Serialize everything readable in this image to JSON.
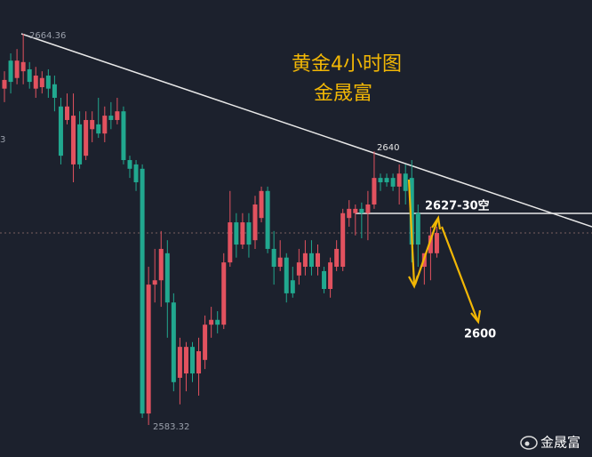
{
  "chart_data": {
    "type": "candlestick",
    "title": "黄金4小时图",
    "subtitle": "金晟富",
    "watermark": "金晟富",
    "up_color": "#e2525f",
    "down_color": "#21a88f",
    "ylim": [
      2576.69,
      2671.36
    ],
    "annotations": {
      "high": "2664.36",
      "low": "2583.32",
      "peak": "2640",
      "resistance": "2627-30空",
      "target": "2600",
      "edge_label": "3"
    },
    "open": [
      2653.0,
      2658.8,
      2655.2,
      2656.6,
      2657.0,
      2653.0,
      2653.3,
      2655.7,
      2653.9,
      2649.3,
      2646.5,
      2637.3,
      2645.6,
      2639.1,
      2644.6,
      2645.6,
      2643.7,
      2647.4,
      2646.5,
      2648.3,
      2638.2,
      2637.3,
      2636.4,
      2585.7,
      2612.4,
      2613.3,
      2618.9,
      2608.7,
      2593.1,
      2594.0,
      2599.5,
      2594.0,
      2596.8,
      2604.1,
      2605.1,
      2604.1,
      2617.0,
      2625.3,
      2620.7,
      2625.3,
      2621.6,
      2626.2,
      2631.8,
      2619.8,
      2616.1,
      2618.0,
      2613.3,
      2614.3,
      2616.1,
      2618.9,
      2616.1,
      2615.2,
      2611.5,
      2616.1,
      2616.1,
      2626.2,
      2627.2,
      2628.1,
      2627.2,
      2629.0,
      2634.5,
      2634.5,
      2634.5,
      2632.7,
      2635.4,
      2634.5,
      2627.2,
      2616.1,
      2618.9,
      2618.9
    ],
    "high": [
      2656.6,
      2660.3,
      2661.2,
      2664.36,
      2658.5,
      2657.5,
      2656.6,
      2657.0,
      2655.7,
      2651.1,
      2652.0,
      2652.0,
      2648.3,
      2648.3,
      2648.3,
      2651.1,
      2649.3,
      2650.2,
      2651.1,
      2649.3,
      2639.1,
      2638.2,
      2637.3,
      2616.1,
      2619.8,
      2623.5,
      2621.6,
      2610.6,
      2601.4,
      2600.5,
      2600.5,
      2601.4,
      2606.0,
      2607.8,
      2606.9,
      2618.9,
      2631.8,
      2627.2,
      2627.2,
      2627.2,
      2630.8,
      2632.7,
      2632.7,
      2623.5,
      2621.6,
      2618.9,
      2616.1,
      2619.8,
      2621.6,
      2621.6,
      2620.7,
      2616.1,
      2618.0,
      2621.6,
      2628.1,
      2629.9,
      2629.0,
      2629.4,
      2631.8,
      2640.0,
      2635.4,
      2635.4,
      2635.4,
      2637.3,
      2637.3,
      2638.2,
      2629.0,
      2618.9,
      2624.4,
      2624.4
    ],
    "low": [
      2650.2,
      2652.0,
      2653.9,
      2653.9,
      2653.0,
      2651.1,
      2652.0,
      2651.1,
      2648.3,
      2637.3,
      2645.6,
      2633.6,
      2636.4,
      2638.2,
      2641.9,
      2642.8,
      2641.9,
      2644.6,
      2645.6,
      2637.3,
      2634.5,
      2631.8,
      2584.8,
      2583.32,
      2608.7,
      2607.8,
      2601.4,
      2590.3,
      2587.6,
      2590.3,
      2592.2,
      2589.4,
      2594.9,
      2601.4,
      2602.3,
      2603.2,
      2616.1,
      2618.0,
      2619.8,
      2618.0,
      2619.8,
      2625.3,
      2618.9,
      2612.4,
      2615.2,
      2608.7,
      2609.7,
      2612.4,
      2614.3,
      2614.3,
      2614.3,
      2610.6,
      2609.7,
      2615.2,
      2615.2,
      2624.4,
      2622.6,
      2622.0,
      2621.6,
      2628.1,
      2631.8,
      2632.7,
      2631.8,
      2629.0,
      2629.0,
      2617.0,
      2616.1,
      2612.4,
      2613.3,
      2618.0
    ],
    "close": [
      2654.8,
      2654.4,
      2658.8,
      2658.5,
      2654.4,
      2655.7,
      2655.2,
      2653.0,
      2651.1,
      2639.1,
      2649.3,
      2647.4,
      2637.3,
      2646.5,
      2646.5,
      2643.7,
      2647.4,
      2646.5,
      2648.3,
      2638.2,
      2636.4,
      2633.6,
      2585.7,
      2612.4,
      2613.3,
      2619.8,
      2608.7,
      2592.2,
      2599.5,
      2599.5,
      2594.0,
      2598.6,
      2604.1,
      2605.1,
      2604.1,
      2617.0,
      2625.3,
      2620.7,
      2625.3,
      2620.7,
      2629.0,
      2631.8,
      2619.8,
      2616.1,
      2618.0,
      2610.6,
      2610.6,
      2617.0,
      2618.9,
      2616.1,
      2618.9,
      2611.5,
      2617.0,
      2619.8,
      2627.2,
      2628.1,
      2628.1,
      2627.2,
      2629.0,
      2634.5,
      2633.6,
      2633.6,
      2632.7,
      2635.4,
      2631.8,
      2620.7,
      2620.7,
      2618.9,
      2622.6,
      2623.1
    ]
  }
}
